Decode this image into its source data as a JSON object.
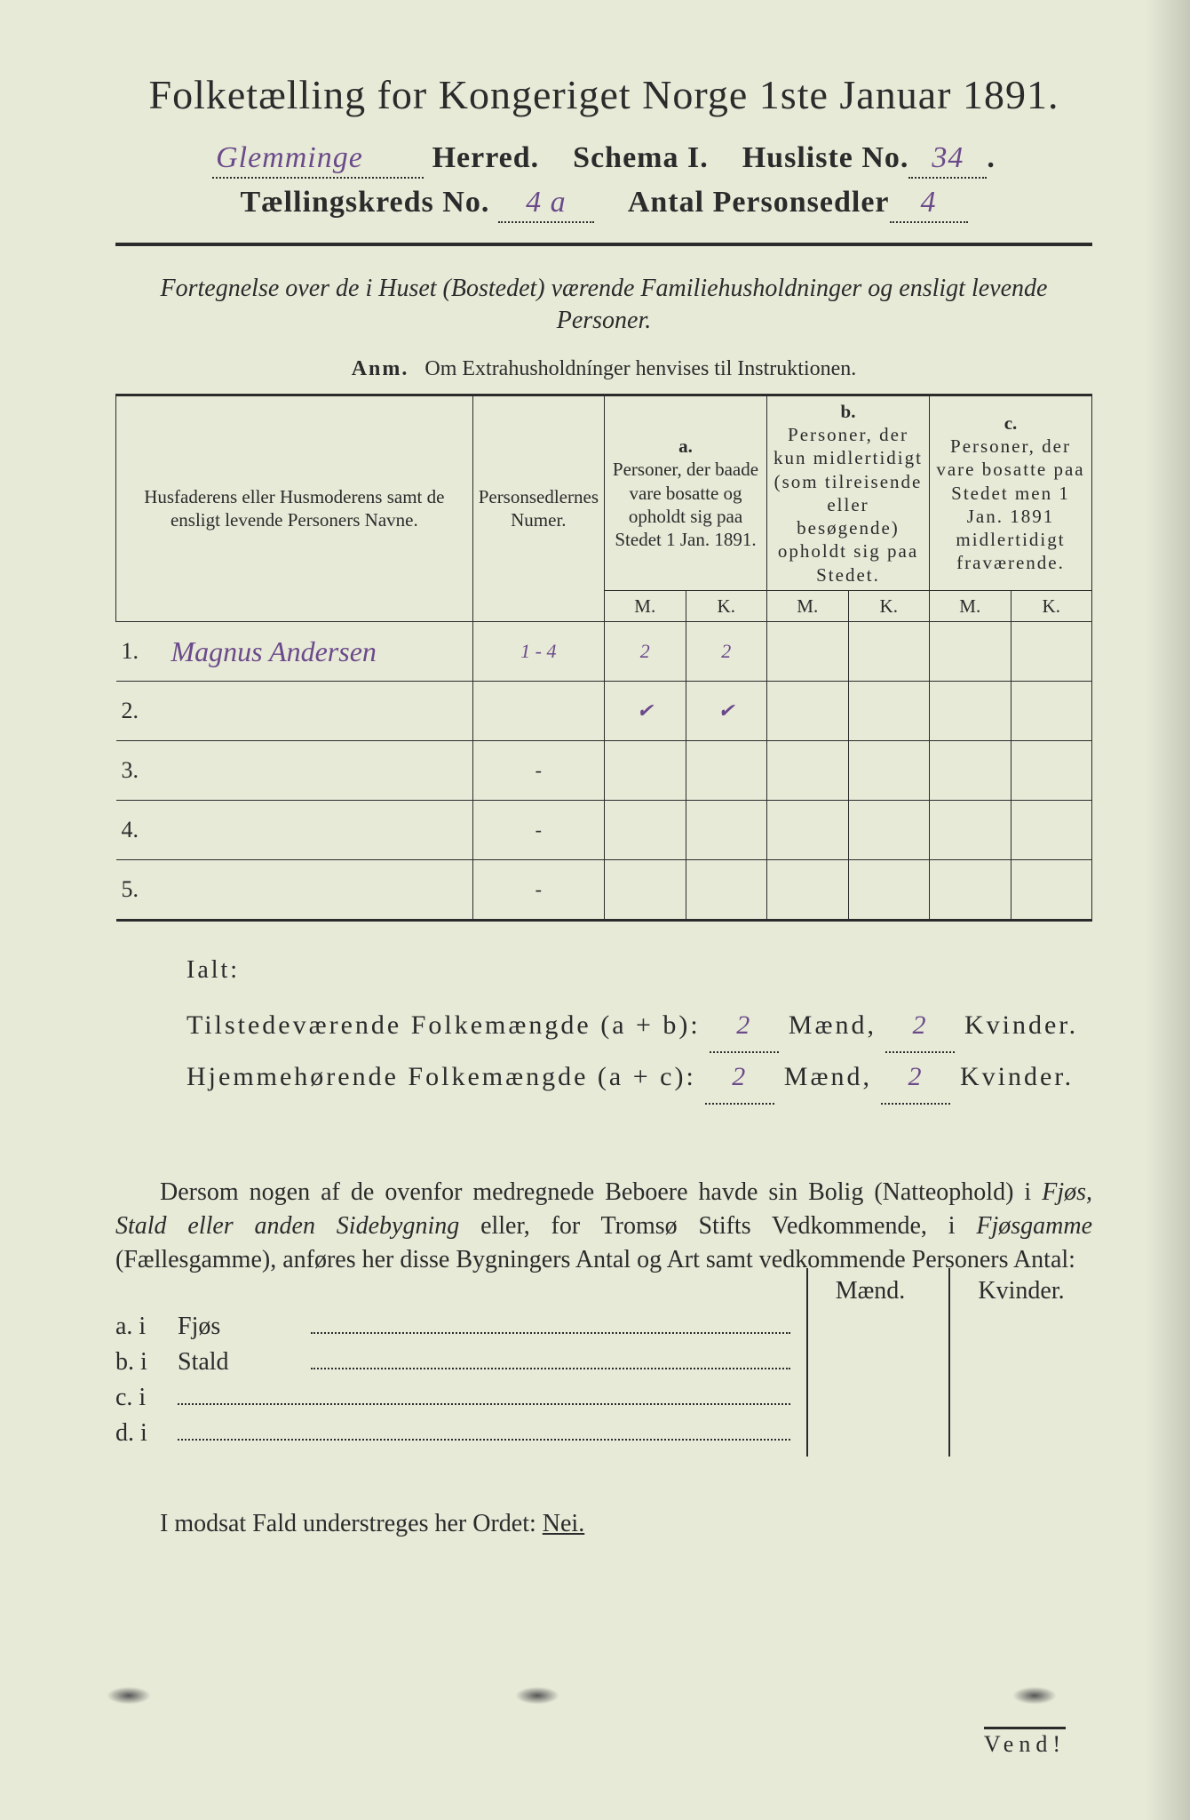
{
  "colors": {
    "paper": "#e8ead8",
    "ink": "#2b2b2b",
    "handwriting": "#6a4a8a",
    "background": "#3a3a3a"
  },
  "typography": {
    "title_fontsize": 46,
    "header_fontsize": 34,
    "body_fontsize": 28,
    "table_fontsize": 22,
    "handwriting_family": "cursive"
  },
  "title": {
    "main": "Folketælling for Kongeriget Norge 1ste Januar 1891."
  },
  "header": {
    "herred_label": "Herred.",
    "herred_value": "Glemminge",
    "schema_label": "Schema I.",
    "husliste_label": "Husliste No.",
    "husliste_value": "34",
    "kreds_label": "Tællingskreds No.",
    "kreds_value": "4 a",
    "antal_label": "Antal Personsedler",
    "antal_value": "4"
  },
  "subtitle": "Fortegnelse over de i Huset (Bostedet) værende Familiehusholdninger og ensligt levende Personer.",
  "anm": {
    "label": "Anm.",
    "text": "Om Extrahusholdnínger henvises til Instruktionen."
  },
  "table": {
    "columns": {
      "name": "Husfaderens eller Husmoderens samt de ensligt levende Personers Navne.",
      "num": "Personsedlernes Numer.",
      "a_letter": "a.",
      "a": "Personer, der baade vare bosatte og opholdt sig paa Stedet 1 Jan. 1891.",
      "b_letter": "b.",
      "b": "Personer, der kun midlertidigt (som tilreisende eller besøgende) opholdt sig paa Stedet.",
      "c_letter": "c.",
      "c": "Personer, der vare bosatte paa Stedet men 1 Jan. 1891 midlertidigt fraværende.",
      "m": "M.",
      "k": "K."
    },
    "rows": [
      {
        "n": "1.",
        "name": "Magnus Andersen",
        "num": "1 - 4",
        "a_m": "2",
        "a_k": "2",
        "b_m": "",
        "b_k": "",
        "c_m": "",
        "c_k": ""
      },
      {
        "n": "2.",
        "name": "",
        "num": "",
        "a_m": "✔",
        "a_k": "✔",
        "b_m": "",
        "b_k": "",
        "c_m": "",
        "c_k": ""
      },
      {
        "n": "3.",
        "name": "",
        "num": "-",
        "a_m": "",
        "a_k": "",
        "b_m": "",
        "b_k": "",
        "c_m": "",
        "c_k": ""
      },
      {
        "n": "4.",
        "name": "",
        "num": "-",
        "a_m": "",
        "a_k": "",
        "b_m": "",
        "b_k": "",
        "c_m": "",
        "c_k": ""
      },
      {
        "n": "5.",
        "name": "",
        "num": "-",
        "a_m": "",
        "a_k": "",
        "b_m": "",
        "b_k": "",
        "c_m": "",
        "c_k": ""
      }
    ]
  },
  "totals": {
    "ialt": "Ialt:",
    "line1_label": "Tilstedeværende Folkemængde (a + b):",
    "line2_label": "Hjemmehørende Folkemængde (a + c):",
    "maend": "Mænd,",
    "kvinder": "Kvinder.",
    "line1_m": "2",
    "line1_k": "2",
    "line2_m": "2",
    "line2_k": "2"
  },
  "para": {
    "text1": "Dersom nogen af de ovenfor medregnede Beboere havde sin Bolig (Natteophold) i ",
    "em1": "Fjøs, Stald eller anden Sidebygning",
    "text2": " eller, for Tromsø Stifts Vedkommende, i ",
    "em2": "Fjøsgamme",
    "text3": " (Fællesgamme), anføres her disse Bygningers Antal og Art samt vedkommende Personers Antal:"
  },
  "buildings": {
    "header_m": "Mænd.",
    "header_k": "Kvinder.",
    "rows": [
      {
        "label": "a.  i",
        "type": "Fjøs"
      },
      {
        "label": "b.  i",
        "type": "Stald"
      },
      {
        "label": "c.  i",
        "type": ""
      },
      {
        "label": "d.  i",
        "type": ""
      }
    ]
  },
  "footer": {
    "text": "I modsat Fald understreges her Ordet: ",
    "nei": "Nei."
  },
  "vend": "Vend!"
}
